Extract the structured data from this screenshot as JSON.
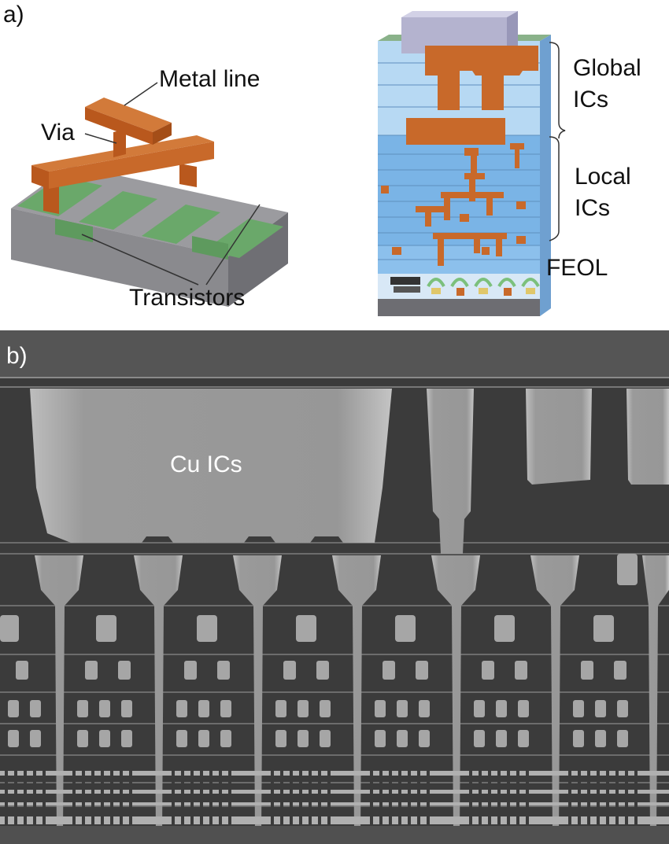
{
  "panel_a": {
    "label": "a)",
    "left_diagram": {
      "metal_line_label": "Metal line",
      "via_label": "Via",
      "transistors_label": "Transistors"
    },
    "right_diagram": {
      "global_label_line1": "Global",
      "global_label_line2": "ICs",
      "local_label_line1": "Local",
      "local_label_line2": "ICs",
      "feol_label": "FEOL"
    }
  },
  "panel_b": {
    "label": "b)",
    "cu_label": "Cu ICs"
  },
  "colors": {
    "copper": "#c8692a",
    "transistor_green": "#6aa86a",
    "substrate_gray": "#8a8a8e",
    "dielectric_blue": "#7ab4e6",
    "global_light_blue": "#b7d9f3",
    "cap_lavender": "#b4b3cf",
    "sem_background": "#3a3a3a",
    "sem_metal": "#9a9a9a"
  }
}
